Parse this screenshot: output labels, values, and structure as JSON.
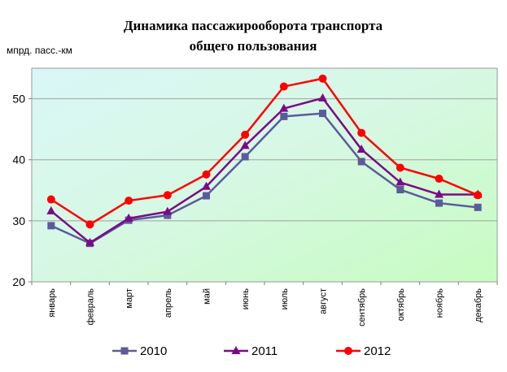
{
  "chart_data": {
    "type": "line",
    "title": "Динамика пассажирооборота транспорта общего пользования",
    "title_lines": [
      "Динамика пассажирооборота транспорта",
      "общего пользования"
    ],
    "ylabel": "мпрд. пасс.-км",
    "xlabel": "",
    "ylim": [
      20,
      55
    ],
    "yticks": [
      20,
      30,
      40,
      50
    ],
    "grid": true,
    "legend_position": "bottom",
    "categories": [
      "январь",
      "февраль",
      "март",
      "апрель",
      "май",
      "июнь",
      "июль",
      "август",
      "сентябрь",
      "октябрь",
      "ноябрь",
      "декабрь"
    ],
    "series": [
      {
        "name": "2010",
        "color": "#5b5b9b",
        "marker": "square",
        "values": [
          29.2,
          26.3,
          30.1,
          30.9,
          34.1,
          40.5,
          47.1,
          47.6,
          39.7,
          35.1,
          32.9,
          32.2
        ]
      },
      {
        "name": "2011",
        "color": "#7b0a86",
        "marker": "triangle",
        "values": [
          31.6,
          26.4,
          30.4,
          31.5,
          35.6,
          42.3,
          48.4,
          50.1,
          41.7,
          36.3,
          34.3,
          34.3
        ]
      },
      {
        "name": "2012",
        "color": "#ff0000",
        "marker": "circle",
        "values": [
          33.5,
          29.4,
          33.3,
          34.2,
          37.6,
          44.1,
          52.0,
          53.3,
          44.4,
          38.7,
          36.9,
          34.2
        ]
      }
    ]
  }
}
